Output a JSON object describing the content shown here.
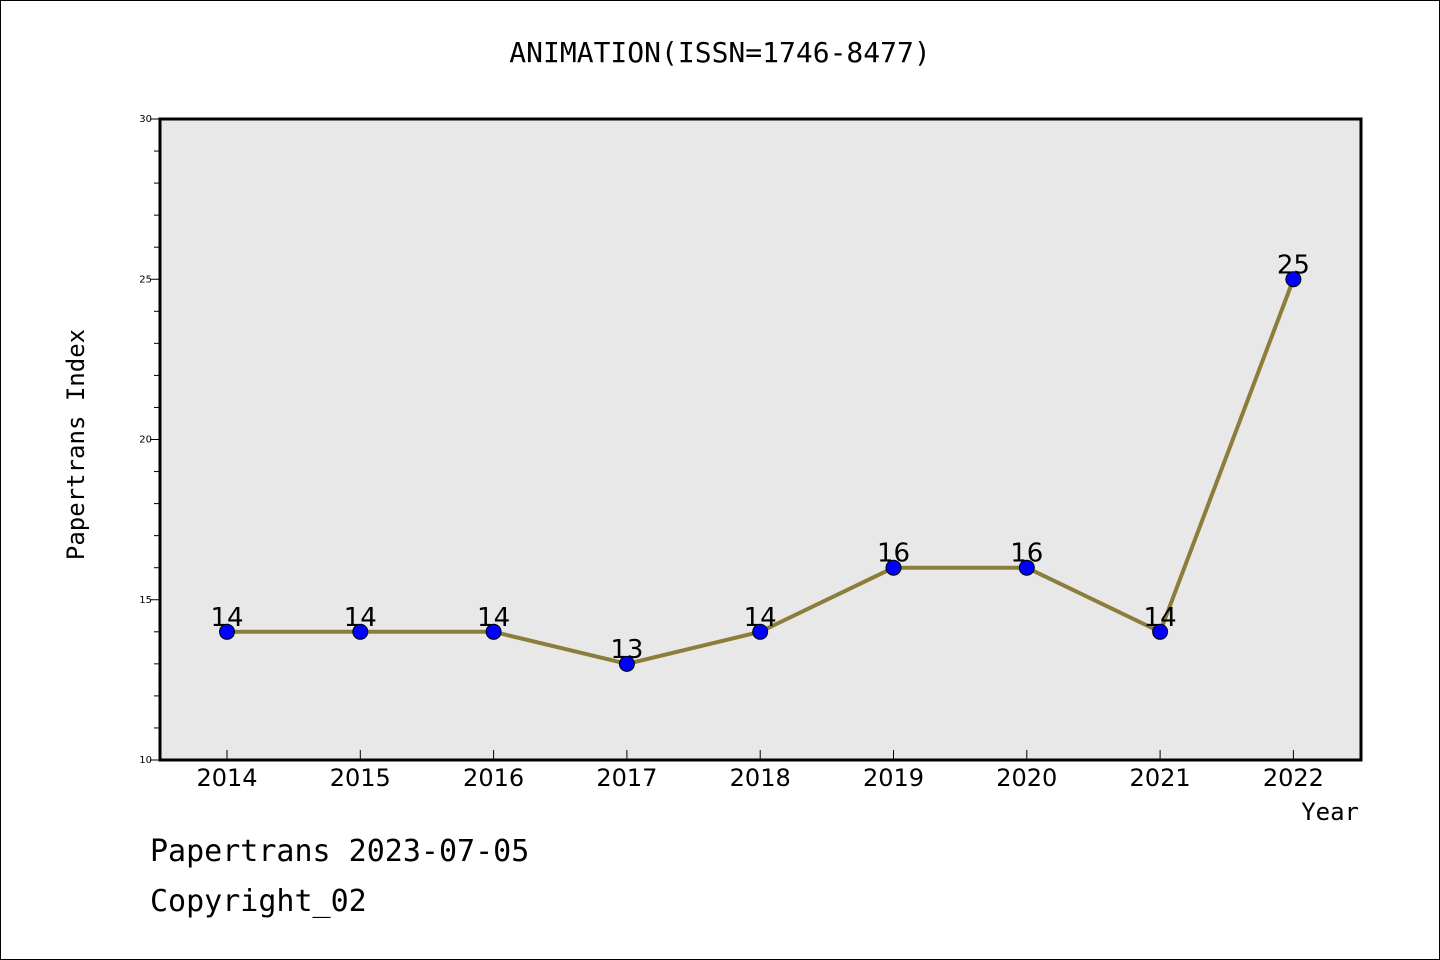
{
  "chart_data": {
    "type": "line",
    "title": "ANIMATION(ISSN=1746-8477)",
    "xlabel": "Year",
    "ylabel": "Papertrans Index",
    "categories": [
      "2014",
      "2015",
      "2016",
      "2017",
      "2018",
      "2019",
      "2020",
      "2021",
      "2022"
    ],
    "series": [
      {
        "values": [
          14,
          14,
          14,
          13,
          14,
          16,
          16,
          14,
          25
        ]
      }
    ],
    "ylim": [
      10,
      30
    ],
    "yticks": [
      "10",
      "15",
      "20",
      "25",
      "30"
    ],
    "data_labels": [
      "14",
      "14",
      "14",
      "13",
      "14",
      "16",
      "16",
      "14",
      "25"
    ],
    "grid": false,
    "line_color": "#8b7d3a",
    "marker_color": "#0000ff",
    "plot_background": "#e8e8e8"
  },
  "footer": {
    "line1": "Papertrans 2023-07-05",
    "line2": "Copyright_02"
  }
}
